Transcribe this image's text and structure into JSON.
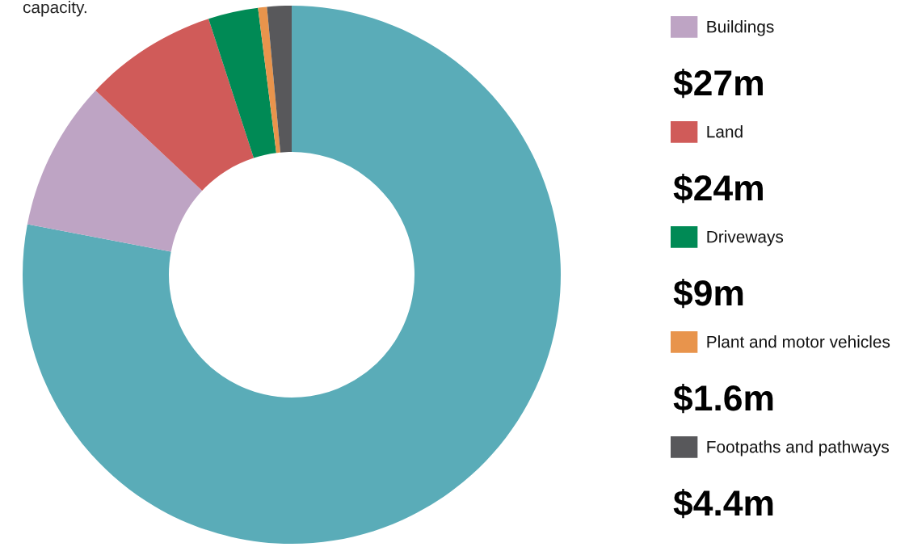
{
  "chart_data": {
    "type": "donut",
    "categories": [
      null,
      "Buildings",
      "Land",
      "Driveways",
      "Plant and motor vehicles",
      "Footpaths and pathways"
    ],
    "values": [
      234,
      27,
      24,
      9,
      1.6,
      4.4
    ],
    "colors": [
      "#5aacb8",
      "#bea4c4",
      "#d05b59",
      "#008a55",
      "#e8944c",
      "#58585b"
    ],
    "value_labels": [
      null,
      "$27m",
      "$24m",
      "$9m",
      "$1.6m",
      "$4.4m"
    ],
    "annotations": [
      "capacity."
    ],
    "legend": "right"
  }
}
